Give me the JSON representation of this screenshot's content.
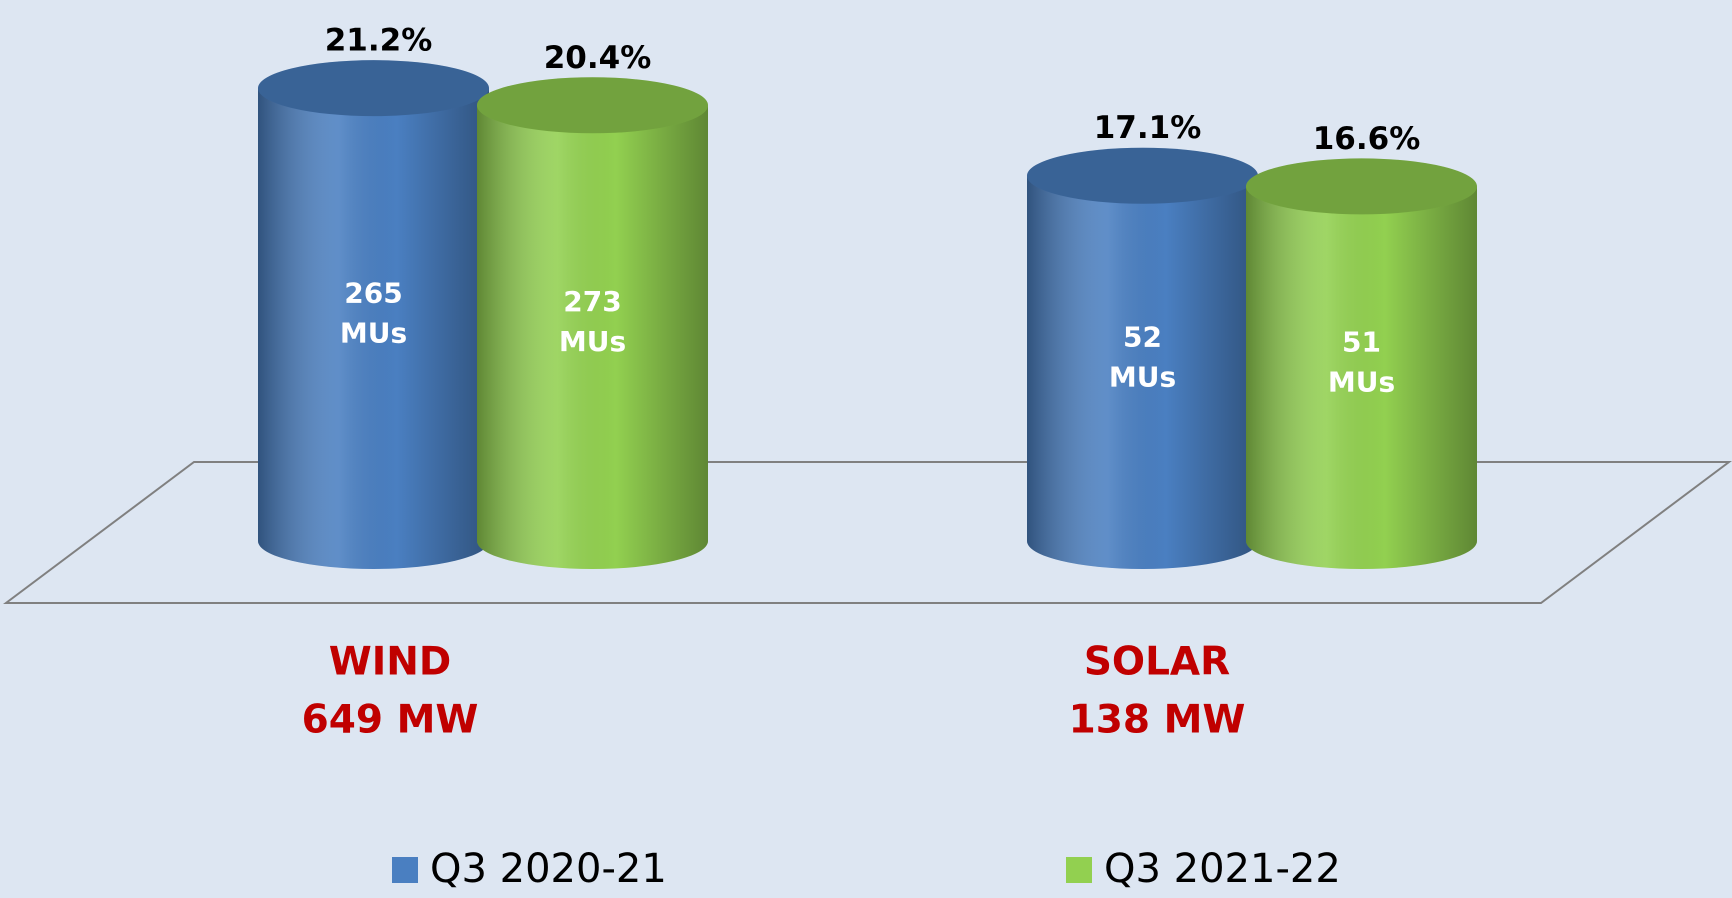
{
  "chart_data": {
    "type": "cylinder",
    "categories": [
      "WIND",
      "SOLAR"
    ],
    "category_sublabels": [
      "649 MW",
      "138 MW"
    ],
    "ylim": [
      0,
      25
    ],
    "series": [
      {
        "name": "Q3 2020-21",
        "color": "#4a7fc1",
        "values": [
          21.2,
          17.1
        ],
        "value_labels": [
          "21.2%",
          "17.1%"
        ],
        "energy_values": [
          265,
          52
        ]
      },
      {
        "name": "Q3 2021-22",
        "color": "#92d050",
        "values": [
          20.4,
          16.6
        ],
        "value_labels": [
          "20.4%",
          "16.6%"
        ],
        "energy_values": [
          273,
          51
        ]
      }
    ],
    "energy_unit": "MUs"
  }
}
